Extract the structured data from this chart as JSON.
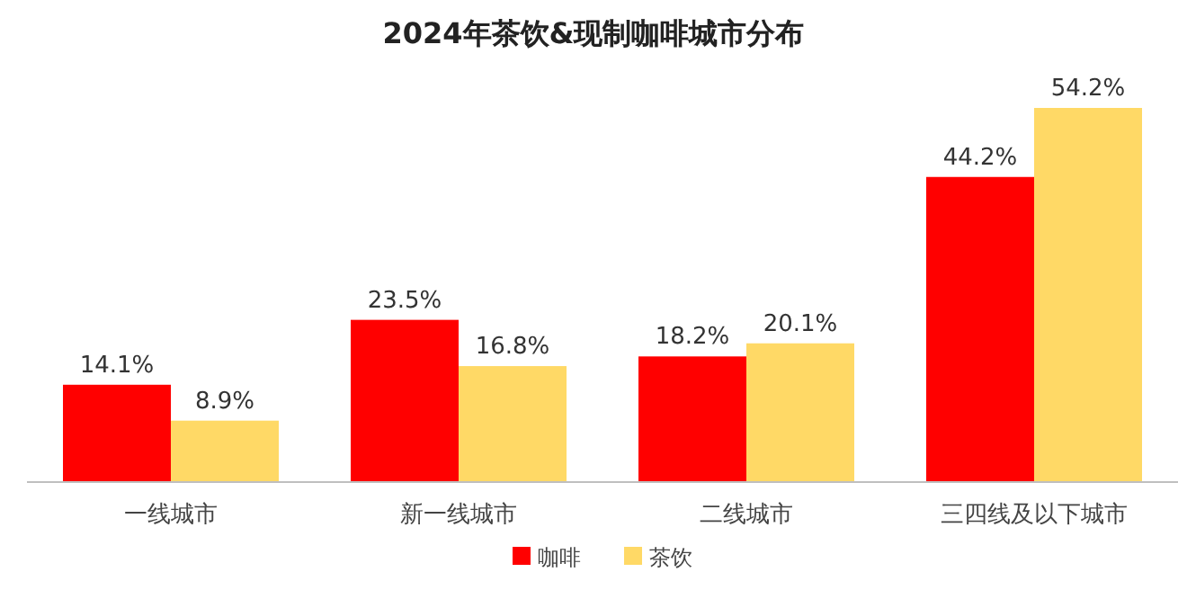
{
  "chart_data": {
    "type": "bar",
    "title": "2024年茶饮&现制咖啡城市分布",
    "categories": [
      "一线城市",
      "新一线城市",
      "二线城市",
      "三四线及以下城市"
    ],
    "grid": false,
    "legend": "bottom",
    "series": [
      {
        "name": "咖啡",
        "color": "#ff0000",
        "values": [
          14.1,
          23.5,
          18.2,
          44.2
        ],
        "value_labels": [
          "14.1%",
          "23.5%",
          "18.2%",
          "44.2%"
        ]
      },
      {
        "name": "茶饮",
        "color": "#ffd966",
        "values": [
          8.9,
          16.8,
          20.1,
          54.2
        ],
        "value_labels": [
          "8.9%",
          "16.8%",
          "20.1%",
          "54.2%"
        ]
      }
    ]
  }
}
